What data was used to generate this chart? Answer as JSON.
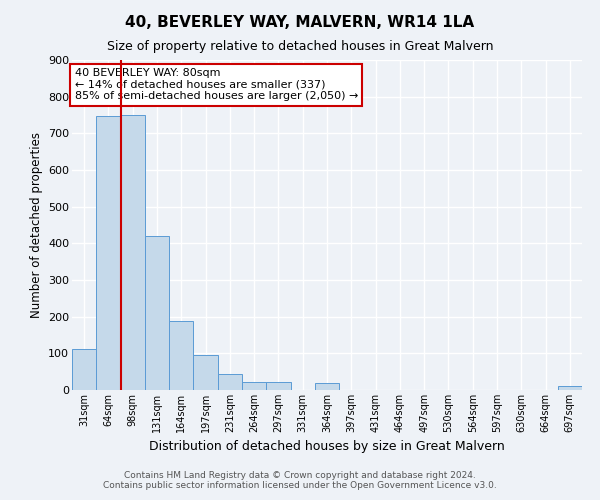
{
  "title": "40, BEVERLEY WAY, MALVERN, WR14 1LA",
  "subtitle": "Size of property relative to detached houses in Great Malvern",
  "xlabel": "Distribution of detached houses by size in Great Malvern",
  "ylabel": "Number of detached properties",
  "bar_labels": [
    "31sqm",
    "64sqm",
    "98sqm",
    "131sqm",
    "164sqm",
    "197sqm",
    "231sqm",
    "264sqm",
    "297sqm",
    "331sqm",
    "364sqm",
    "397sqm",
    "431sqm",
    "464sqm",
    "497sqm",
    "530sqm",
    "564sqm",
    "597sqm",
    "630sqm",
    "664sqm",
    "697sqm"
  ],
  "bar_values": [
    112,
    748,
    750,
    420,
    188,
    95,
    45,
    22,
    22,
    0,
    18,
    0,
    0,
    0,
    0,
    0,
    0,
    0,
    0,
    0,
    12
  ],
  "bar_color": "#c5d9ea",
  "bar_edge_color": "#5b9bd5",
  "background_color": "#eef2f7",
  "grid_color": "#ffffff",
  "ylim": [
    0,
    900
  ],
  "yticks": [
    0,
    100,
    200,
    300,
    400,
    500,
    600,
    700,
    800,
    900
  ],
  "property_line_color": "#cc0000",
  "annotation_box_text": "40 BEVERLEY WAY: 80sqm\n← 14% of detached houses are smaller (337)\n85% of semi-detached houses are larger (2,050) →",
  "annotation_box_color": "#ffffff",
  "annotation_box_edge_color": "#cc0000",
  "footer_line1": "Contains HM Land Registry data © Crown copyright and database right 2024.",
  "footer_line2": "Contains public sector information licensed under the Open Government Licence v3.0."
}
